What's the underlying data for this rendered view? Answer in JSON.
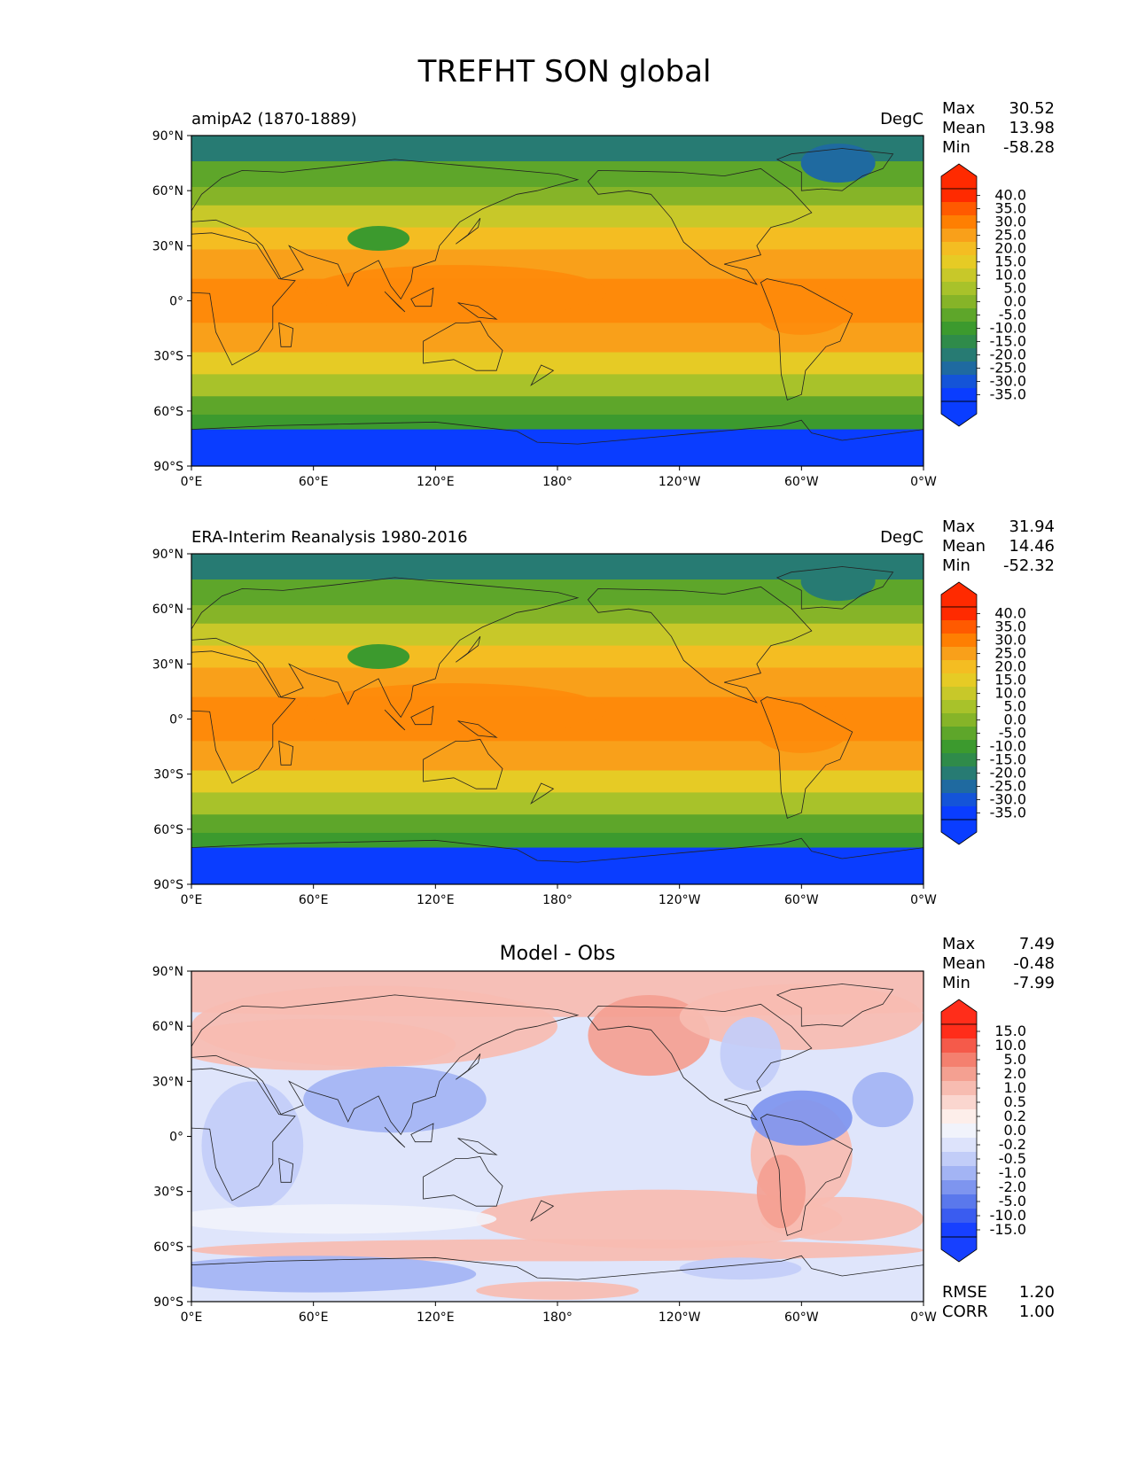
{
  "title": "TREFHT SON global",
  "axes": {
    "lat_labels": [
      "90°N",
      "60°N",
      "30°N",
      "0°",
      "30°S",
      "60°S",
      "90°S"
    ],
    "lon_labels": [
      "0°E",
      "60°E",
      "120°E",
      "180°",
      "120°W",
      "60°W",
      "0°W"
    ]
  },
  "panels": [
    {
      "id": "model",
      "left_title": "amipA2 (1870-1889)",
      "center_title": "",
      "units": "DegC",
      "stats": [
        {
          "label": "Max",
          "value": "30.52"
        },
        {
          "label": "Mean",
          "value": "13.98"
        },
        {
          "label": "Min",
          "value": "-58.28"
        }
      ],
      "colorbar": {
        "labels": [
          "40.0",
          "35.0",
          "30.0",
          "25.0",
          "20.0",
          "15.0",
          "10.0",
          "5.0",
          "0.0",
          "-5.0",
          "-10.0",
          "-15.0",
          "-20.0",
          "-25.0",
          "-30.0",
          "-35.0"
        ],
        "colors": [
          "#ff2a00",
          "#ff5a00",
          "#fe7f02",
          "#f9a01a",
          "#f4bd22",
          "#e6cb25",
          "#c8c829",
          "#a8c22a",
          "#86b428",
          "#5ea62a",
          "#3c9a2e",
          "#2f8b4a",
          "#277b73",
          "#1f6aa0",
          "#1454d8",
          "#0a3dff"
        ],
        "arrow_top": "#ff2a00",
        "arrow_bottom": "#0a3dff"
      }
    },
    {
      "id": "obs",
      "left_title": "ERA-Interim Reanalysis 1980-2016",
      "center_title": "",
      "units": "DegC",
      "stats": [
        {
          "label": "Max",
          "value": "31.94"
        },
        {
          "label": "Mean",
          "value": "14.46"
        },
        {
          "label": "Min",
          "value": "-52.32"
        }
      ],
      "colorbar": {
        "labels": [
          "40.0",
          "35.0",
          "30.0",
          "25.0",
          "20.0",
          "15.0",
          "10.0",
          "5.0",
          "0.0",
          "-5.0",
          "-10.0",
          "-15.0",
          "-20.0",
          "-25.0",
          "-30.0",
          "-35.0"
        ],
        "colors": [
          "#ff2a00",
          "#ff5a00",
          "#fe7f02",
          "#f9a01a",
          "#f4bd22",
          "#e6cb25",
          "#c8c829",
          "#a8c22a",
          "#86b428",
          "#5ea62a",
          "#3c9a2e",
          "#2f8b4a",
          "#277b73",
          "#1f6aa0",
          "#1454d8",
          "#0a3dff"
        ],
        "arrow_top": "#ff2a00",
        "arrow_bottom": "#0a3dff"
      }
    },
    {
      "id": "diff",
      "left_title": "",
      "center_title": "Model - Obs",
      "units": "",
      "stats": [
        {
          "label": "Max",
          "value": "7.49"
        },
        {
          "label": "Mean",
          "value": "-0.48"
        },
        {
          "label": "Min",
          "value": "-7.99"
        }
      ],
      "extra_stats": [
        {
          "label": "RMSE",
          "value": "1.20"
        },
        {
          "label": "CORR",
          "value": "1.00"
        }
      ],
      "colorbar": {
        "labels": [
          "15.0",
          "10.0",
          "5.0",
          "2.0",
          "1.0",
          "0.5",
          "0.2",
          "0.0",
          "-0.2",
          "-0.5",
          "-1.0",
          "-2.0",
          "-5.0",
          "-10.0",
          "-15.0"
        ],
        "colors": [
          "#ff2d1a",
          "#f55a4a",
          "#f4806f",
          "#f4a091",
          "#f7bcb1",
          "#fad6cf",
          "#fdeeea",
          "#f1f3fb",
          "#dde3fb",
          "#c2cdf8",
          "#a3b4f4",
          "#7e95ef",
          "#5a78ec",
          "#3a5cf0",
          "#1740ff"
        ],
        "arrow_top": "#ff2d1a",
        "arrow_bottom": "#1740ff"
      }
    }
  ],
  "map_colors": {
    "model": [
      "#0a3dff",
      "#1454d8",
      "#277b73",
      "#3c9a2e",
      "#5ea62a",
      "#86b428",
      "#a8c22a",
      "#c8c829",
      "#e6cb25",
      "#f4bd22",
      "#f9a01a",
      "#fe8a0a"
    ],
    "diff": [
      "#dfe5fb",
      "#c2cdf8",
      "#a3b4f4",
      "#f7bcb1",
      "#f4a091",
      "#f1f3fb",
      "#7e95ef",
      "#fad6cf"
    ]
  }
}
